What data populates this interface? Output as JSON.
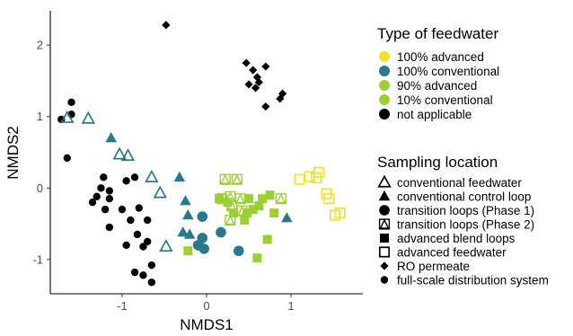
{
  "chart_data": {
    "type": "scatter",
    "xlabel": "NMDS1",
    "ylabel": "NMDS2",
    "xlim": [
      -1.85,
      1.85
    ],
    "ylim": [
      -1.48,
      2.48
    ],
    "xticks": [
      -1,
      0,
      1
    ],
    "yticks": [
      -1,
      0,
      1,
      2
    ],
    "grid": false,
    "legend_placement": "right",
    "colors": {
      "advanced": "#f2e02a",
      "conventional": "#2a788e",
      "ninety_advanced": "#9ccf32",
      "ten_conventional": "#9ccf32",
      "not_applicable": "#000000"
    },
    "legend_color": {
      "title": "Type of feedwater",
      "entries": [
        {
          "key": "advanced",
          "label": "100% advanced"
        },
        {
          "key": "conventional",
          "label": "100% conventional"
        },
        {
          "key": "ninety_advanced",
          "label": "90% advanced"
        },
        {
          "key": "ten_conventional",
          "label": "10% conventional"
        },
        {
          "key": "not_applicable",
          "label": "not applicable"
        }
      ]
    },
    "legend_shape": {
      "title": "Sampling location",
      "entries": [
        {
          "key": "conventional_feedwater",
          "shape": "triangle-open",
          "label": "conventional feedwater"
        },
        {
          "key": "conventional_control",
          "shape": "triangle-filled",
          "label": "conventional control loop"
        },
        {
          "key": "transition_p1",
          "shape": "circle-filled",
          "label": "transition loops (Phase 1)"
        },
        {
          "key": "transition_p2",
          "shape": "triangle-square-open",
          "label": "transition loops (Phase 2)"
        },
        {
          "key": "advanced_blend",
          "shape": "square-filled",
          "label": "advanced blend loops"
        },
        {
          "key": "advanced_feedwater",
          "shape": "square-open",
          "label": "advanced feedwater"
        },
        {
          "key": "ro_permeate",
          "shape": "diamond-filled",
          "label": "RO permeate"
        },
        {
          "key": "full_scale",
          "shape": "circle-small",
          "label": "full-scale distribution system"
        }
      ]
    },
    "series": [
      {
        "key": "full_scale",
        "color": "not_applicable",
        "shape": "circle-small",
        "points": [
          [
            -1.72,
            0.96
          ],
          [
            -1.6,
            1.2
          ],
          [
            -1.6,
            1.03
          ],
          [
            -1.65,
            0.42
          ],
          [
            -1.22,
            0.15
          ],
          [
            -1.25,
            0.0
          ],
          [
            -1.15,
            -0.04
          ],
          [
            -0.95,
            0.1
          ],
          [
            -0.85,
            0.15
          ],
          [
            -1.3,
            -0.12
          ],
          [
            -1.15,
            -0.15
          ],
          [
            -1.35,
            -0.2
          ],
          [
            -1.2,
            -0.3
          ],
          [
            -1.0,
            -0.3
          ],
          [
            -0.8,
            -0.28
          ],
          [
            -0.9,
            -0.45
          ],
          [
            -0.7,
            -0.45
          ],
          [
            -1.15,
            -0.55
          ],
          [
            -0.82,
            -0.65
          ],
          [
            -0.75,
            -0.82
          ],
          [
            -0.95,
            -0.8
          ],
          [
            -0.85,
            -1.18
          ],
          [
            -0.65,
            -1.08
          ],
          [
            -0.75,
            -1.22
          ],
          [
            -0.65,
            -1.32
          ],
          [
            -0.7,
            -0.75
          ]
        ]
      },
      {
        "key": "ro_permeate",
        "color": "not_applicable",
        "shape": "diamond-filled",
        "points": [
          [
            -0.48,
            2.28
          ],
          [
            0.47,
            1.75
          ],
          [
            0.55,
            1.65
          ],
          [
            0.7,
            1.7
          ],
          [
            0.6,
            1.55
          ],
          [
            0.5,
            1.45
          ],
          [
            0.62,
            1.48
          ],
          [
            0.58,
            1.4
          ],
          [
            0.9,
            1.32
          ],
          [
            0.87,
            1.25
          ],
          [
            0.7,
            1.14
          ]
        ]
      },
      {
        "key": "conventional_feedwater",
        "color": "conventional",
        "shape": "triangle-open",
        "points": [
          [
            -1.65,
            0.98
          ],
          [
            -1.4,
            0.97
          ],
          [
            -1.03,
            0.47
          ],
          [
            -0.93,
            0.45
          ],
          [
            -0.65,
            0.15
          ],
          [
            -0.55,
            -0.07
          ],
          [
            -0.48,
            -0.82
          ]
        ]
      },
      {
        "key": "conventional_control",
        "color": "conventional",
        "shape": "triangle-filled",
        "points": [
          [
            -1.13,
            0.7
          ],
          [
            -0.32,
            0.15
          ],
          [
            -0.25,
            -0.18
          ],
          [
            -0.22,
            -0.38
          ],
          [
            -0.2,
            -0.65
          ],
          [
            0.95,
            -0.42
          ],
          [
            -0.28,
            -0.62
          ]
        ]
      },
      {
        "key": "transition_p1",
        "color": "conventional",
        "shape": "circle-filled",
        "points": [
          [
            -0.05,
            -0.4
          ],
          [
            -0.1,
            -0.8
          ],
          [
            -0.05,
            -0.7
          ],
          [
            -0.03,
            -0.85
          ],
          [
            0.17,
            -0.62
          ],
          [
            0.38,
            -0.88
          ]
        ]
      },
      {
        "key": "transition_p2",
        "color": "ninety_advanced",
        "shape": "triangle-square-open",
        "points": [
          [
            0.22,
            0.12
          ],
          [
            0.36,
            0.12
          ],
          [
            0.28,
            -0.12
          ],
          [
            0.4,
            -0.15
          ],
          [
            0.3,
            -0.25
          ],
          [
            0.42,
            -0.32
          ],
          [
            0.28,
            -0.45
          ],
          [
            0.88,
            -0.15
          ],
          [
            0.18,
            -0.15
          ]
        ]
      },
      {
        "key": "advanced_blend",
        "color": "ninety_advanced",
        "shape": "square-filled",
        "points": [
          [
            0.15,
            -0.15
          ],
          [
            0.25,
            -0.2
          ],
          [
            0.32,
            -0.35
          ],
          [
            0.48,
            -0.35
          ],
          [
            0.55,
            -0.3
          ],
          [
            0.62,
            -0.25
          ],
          [
            0.66,
            -0.15
          ],
          [
            0.75,
            -0.1
          ],
          [
            0.8,
            -0.35
          ],
          [
            0.5,
            -0.15
          ],
          [
            0.45,
            -0.45
          ],
          [
            0.72,
            -0.72
          ],
          [
            0.6,
            -0.98
          ],
          [
            -0.22,
            -0.88
          ]
        ]
      },
      {
        "key": "advanced_feedwater",
        "color": "advanced",
        "shape": "square-open",
        "points": [
          [
            1.1,
            0.12
          ],
          [
            1.22,
            0.16
          ],
          [
            1.33,
            0.22
          ],
          [
            1.3,
            0.14
          ],
          [
            1.42,
            -0.08
          ],
          [
            1.45,
            -0.15
          ],
          [
            1.52,
            -0.38
          ],
          [
            1.58,
            -0.35
          ]
        ]
      }
    ]
  }
}
